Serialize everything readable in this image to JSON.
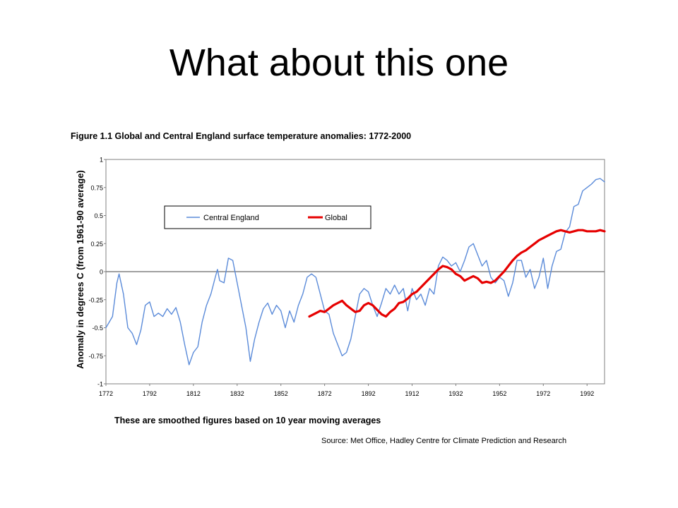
{
  "slide": {
    "title": "What about this one"
  },
  "chart_data": {
    "type": "line",
    "title": "Figure 1.1 Global and Central England surface temperature anomalies: 1772-2000",
    "xlabel": "",
    "ylabel": "Anomaly in degrees C (from 1961-90 average)",
    "xlim": [
      1772,
      2000
    ],
    "ylim": [
      -1,
      1
    ],
    "x_ticks": [
      "1772",
      "1792",
      "1812",
      "1832",
      "1852",
      "1872",
      "1892",
      "1912",
      "1932",
      "1952",
      "1972",
      "1992"
    ],
    "y_ticks": [
      "1",
      "0.75",
      "0.5",
      "0.25",
      "0",
      "-0.25",
      "-0.5",
      "-0.75",
      "-1"
    ],
    "zero_line": true,
    "legend": {
      "placement": "top-left"
    },
    "footnote": "These are smoothed figures based on 10 year moving averages",
    "source": "Source:  Met Office, Hadley Centre for Climate Prediction and Research",
    "series": [
      {
        "name": "Central England",
        "color": "#5b8bd9",
        "points": [
          [
            1772,
            -0.5
          ],
          [
            1775,
            -0.4
          ],
          [
            1777,
            -0.1
          ],
          [
            1778,
            -0.02
          ],
          [
            1780,
            -0.2
          ],
          [
            1782,
            -0.5
          ],
          [
            1784,
            -0.55
          ],
          [
            1786,
            -0.65
          ],
          [
            1788,
            -0.52
          ],
          [
            1790,
            -0.3
          ],
          [
            1792,
            -0.27
          ],
          [
            1794,
            -0.4
          ],
          [
            1796,
            -0.37
          ],
          [
            1798,
            -0.4
          ],
          [
            1800,
            -0.33
          ],
          [
            1802,
            -0.38
          ],
          [
            1804,
            -0.32
          ],
          [
            1806,
            -0.45
          ],
          [
            1808,
            -0.65
          ],
          [
            1810,
            -0.83
          ],
          [
            1812,
            -0.72
          ],
          [
            1814,
            -0.67
          ],
          [
            1816,
            -0.45
          ],
          [
            1818,
            -0.3
          ],
          [
            1820,
            -0.2
          ],
          [
            1822,
            -0.05
          ],
          [
            1823,
            0.02
          ],
          [
            1824,
            -0.08
          ],
          [
            1826,
            -0.1
          ],
          [
            1828,
            0.12
          ],
          [
            1830,
            0.1
          ],
          [
            1832,
            -0.1
          ],
          [
            1834,
            -0.3
          ],
          [
            1836,
            -0.5
          ],
          [
            1838,
            -0.8
          ],
          [
            1840,
            -0.6
          ],
          [
            1842,
            -0.45
          ],
          [
            1844,
            -0.33
          ],
          [
            1846,
            -0.28
          ],
          [
            1848,
            -0.38
          ],
          [
            1850,
            -0.3
          ],
          [
            1852,
            -0.35
          ],
          [
            1854,
            -0.5
          ],
          [
            1856,
            -0.35
          ],
          [
            1858,
            -0.45
          ],
          [
            1860,
            -0.3
          ],
          [
            1862,
            -0.2
          ],
          [
            1864,
            -0.05
          ],
          [
            1866,
            -0.02
          ],
          [
            1868,
            -0.05
          ],
          [
            1870,
            -0.2
          ],
          [
            1872,
            -0.35
          ],
          [
            1874,
            -0.38
          ],
          [
            1876,
            -0.55
          ],
          [
            1878,
            -0.65
          ],
          [
            1880,
            -0.75
          ],
          [
            1882,
            -0.72
          ],
          [
            1884,
            -0.6
          ],
          [
            1886,
            -0.4
          ],
          [
            1888,
            -0.2
          ],
          [
            1890,
            -0.15
          ],
          [
            1892,
            -0.18
          ],
          [
            1894,
            -0.3
          ],
          [
            1896,
            -0.4
          ],
          [
            1898,
            -0.28
          ],
          [
            1900,
            -0.15
          ],
          [
            1902,
            -0.2
          ],
          [
            1904,
            -0.12
          ],
          [
            1906,
            -0.2
          ],
          [
            1908,
            -0.15
          ],
          [
            1910,
            -0.35
          ],
          [
            1912,
            -0.15
          ],
          [
            1914,
            -0.25
          ],
          [
            1916,
            -0.2
          ],
          [
            1918,
            -0.3
          ],
          [
            1920,
            -0.15
          ],
          [
            1922,
            -0.2
          ],
          [
            1924,
            0.05
          ],
          [
            1926,
            0.13
          ],
          [
            1928,
            0.1
          ],
          [
            1930,
            0.05
          ],
          [
            1932,
            0.08
          ],
          [
            1934,
            0.0
          ],
          [
            1936,
            0.1
          ],
          [
            1938,
            0.22
          ],
          [
            1940,
            0.25
          ],
          [
            1942,
            0.15
          ],
          [
            1944,
            0.05
          ],
          [
            1946,
            0.1
          ],
          [
            1948,
            -0.05
          ],
          [
            1950,
            -0.1
          ],
          [
            1952,
            -0.05
          ],
          [
            1954,
            -0.08
          ],
          [
            1956,
            -0.22
          ],
          [
            1958,
            -0.1
          ],
          [
            1960,
            0.1
          ],
          [
            1962,
            0.1
          ],
          [
            1964,
            -0.05
          ],
          [
            1966,
            0.02
          ],
          [
            1968,
            -0.15
          ],
          [
            1970,
            -0.05
          ],
          [
            1972,
            0.12
          ],
          [
            1974,
            -0.15
          ],
          [
            1976,
            0.05
          ],
          [
            1978,
            0.18
          ],
          [
            1980,
            0.2
          ],
          [
            1982,
            0.35
          ],
          [
            1984,
            0.4
          ],
          [
            1986,
            0.58
          ],
          [
            1988,
            0.6
          ],
          [
            1990,
            0.72
          ],
          [
            1992,
            0.75
          ],
          [
            1994,
            0.78
          ],
          [
            1996,
            0.82
          ],
          [
            1998,
            0.83
          ],
          [
            2000,
            0.8
          ]
        ]
      },
      {
        "name": "Global",
        "color": "#e60000",
        "points": [
          [
            1865,
            -0.4
          ],
          [
            1868,
            -0.37
          ],
          [
            1870,
            -0.35
          ],
          [
            1872,
            -0.36
          ],
          [
            1874,
            -0.33
          ],
          [
            1876,
            -0.3
          ],
          [
            1878,
            -0.28
          ],
          [
            1880,
            -0.26
          ],
          [
            1882,
            -0.3
          ],
          [
            1884,
            -0.33
          ],
          [
            1886,
            -0.36
          ],
          [
            1888,
            -0.35
          ],
          [
            1890,
            -0.3
          ],
          [
            1892,
            -0.28
          ],
          [
            1894,
            -0.3
          ],
          [
            1896,
            -0.34
          ],
          [
            1898,
            -0.38
          ],
          [
            1900,
            -0.4
          ],
          [
            1902,
            -0.36
          ],
          [
            1904,
            -0.33
          ],
          [
            1906,
            -0.28
          ],
          [
            1908,
            -0.27
          ],
          [
            1910,
            -0.24
          ],
          [
            1912,
            -0.2
          ],
          [
            1914,
            -0.18
          ],
          [
            1916,
            -0.14
          ],
          [
            1918,
            -0.1
          ],
          [
            1920,
            -0.06
          ],
          [
            1922,
            -0.02
          ],
          [
            1924,
            0.02
          ],
          [
            1926,
            0.05
          ],
          [
            1928,
            0.04
          ],
          [
            1930,
            0.02
          ],
          [
            1932,
            -0.02
          ],
          [
            1934,
            -0.04
          ],
          [
            1936,
            -0.08
          ],
          [
            1938,
            -0.06
          ],
          [
            1940,
            -0.04
          ],
          [
            1942,
            -0.06
          ],
          [
            1944,
            -0.1
          ],
          [
            1946,
            -0.09
          ],
          [
            1948,
            -0.1
          ],
          [
            1950,
            -0.08
          ],
          [
            1952,
            -0.04
          ],
          [
            1954,
            0.0
          ],
          [
            1956,
            0.05
          ],
          [
            1958,
            0.1
          ],
          [
            1960,
            0.14
          ],
          [
            1962,
            0.17
          ],
          [
            1964,
            0.19
          ],
          [
            1966,
            0.22
          ],
          [
            1968,
            0.25
          ],
          [
            1970,
            0.28
          ],
          [
            1972,
            0.3
          ],
          [
            1974,
            0.32
          ],
          [
            1976,
            0.34
          ],
          [
            1978,
            0.36
          ],
          [
            1980,
            0.37
          ],
          [
            1982,
            0.36
          ],
          [
            1984,
            0.35
          ],
          [
            1986,
            0.36
          ],
          [
            1988,
            0.37
          ],
          [
            1990,
            0.37
          ],
          [
            1992,
            0.36
          ],
          [
            1994,
            0.36
          ],
          [
            1996,
            0.36
          ],
          [
            1998,
            0.37
          ],
          [
            2000,
            0.36
          ]
        ]
      }
    ]
  }
}
